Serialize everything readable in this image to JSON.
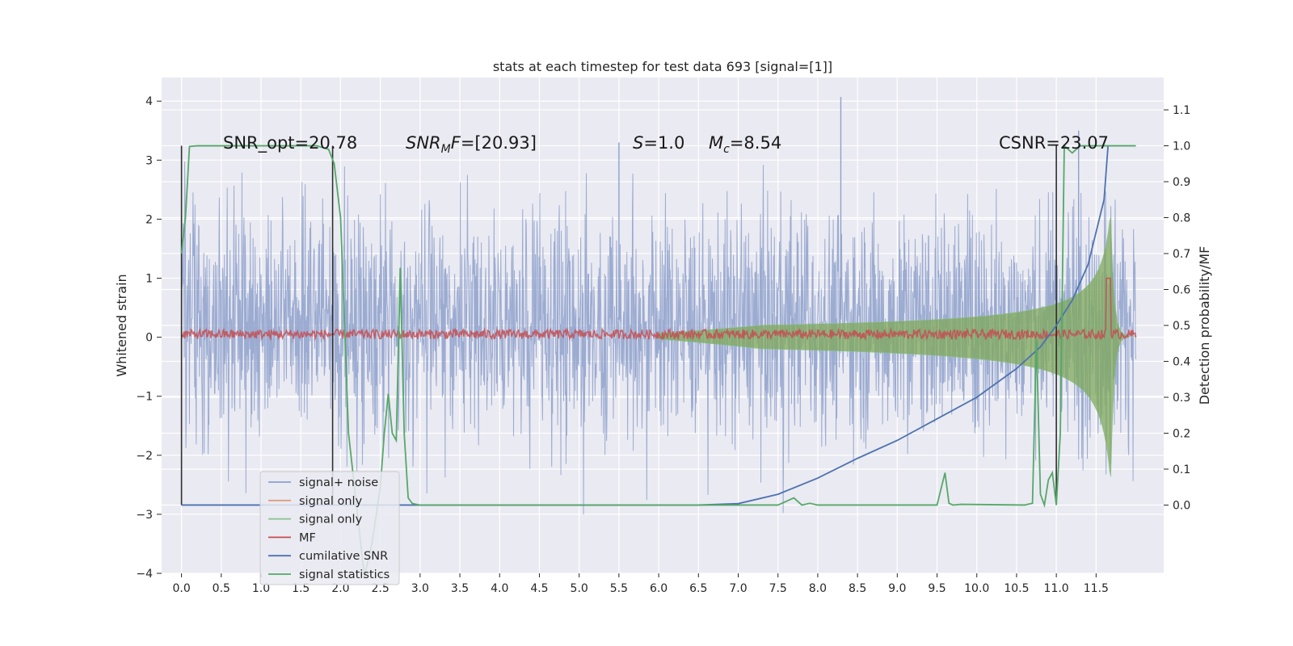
{
  "chart_data": {
    "type": "line",
    "title": "stats at each timestep for test data 693 [signal=[1]]",
    "ylabel_left": "Whitened strain",
    "ylabel_right": "Detection probability/MF",
    "xlim": [
      -0.25,
      12.35
    ],
    "ylim_left": [
      -4.0,
      4.4
    ],
    "ylim_right": [
      -0.19,
      1.19
    ],
    "x_ticks": [
      "0.0",
      "0.5",
      "1.0",
      "1.5",
      "2.0",
      "2.5",
      "3.0",
      "3.5",
      "4.0",
      "4.5",
      "5.0",
      "5.5",
      "6.0",
      "6.5",
      "7.0",
      "7.5",
      "8.0",
      "8.5",
      "9.0",
      "9.5",
      "10.0",
      "10.5",
      "11.0",
      "11.5"
    ],
    "y_ticks_left": [
      "4",
      "3",
      "2",
      "1",
      "0",
      "−1",
      "−2",
      "−3",
      "−4"
    ],
    "y_ticks_right": [
      "1.1",
      "1.0",
      "0.9",
      "0.8",
      "0.7",
      "0.6",
      "0.5",
      "0.4",
      "0.3",
      "0.2",
      "0.1",
      "0.0"
    ],
    "grid": true,
    "legend_position": "lower-left",
    "legend": [
      {
        "label": "signal+ noise",
        "color": "#8da0cb"
      },
      {
        "label": "signal only",
        "color": "#dd9f80"
      },
      {
        "label": "signal only",
        "color": "#88c28d"
      },
      {
        "label": "MF",
        "color": "#c44e52"
      },
      {
        "label": "cumilative SNR",
        "color": "#4c72b0"
      },
      {
        "label": "signal statistics",
        "color": "#55a868"
      }
    ],
    "annotations": {
      "snr_opt": "SNR_opt=20.78",
      "snr_mf_prefix": "SNR",
      "snr_mf_sub": "M",
      "snr_mf_suffix": "F=[20.93]",
      "s_label": "S",
      "s_value": "=1.0",
      "mc_label": "M",
      "mc_sub": "c",
      "mc_value": "=8.54",
      "csnr": "CSNR=23.07"
    },
    "series": [
      {
        "name": "signal+ noise",
        "axis": "left",
        "x_range": [
          0,
          12.0
        ],
        "envelope_typical": [
          -1.5,
          2.0
        ],
        "peaks_max": 4.07,
        "peaks_min": -3.65
      },
      {
        "name": "signal only",
        "axis": "left",
        "x_range": [
          0,
          12.0
        ],
        "description": "chirp amplitude rising to about ±2.7 at x≈11.65"
      },
      {
        "name": "MF",
        "axis": "left",
        "x_range": [
          0,
          12.0
        ],
        "level": 0.05
      },
      {
        "name": "cumilative SNR",
        "axis": "right",
        "x": [
          0.0,
          6.5,
          7.0,
          7.5,
          8.0,
          8.5,
          9.0,
          9.5,
          10.0,
          10.5,
          10.8,
          11.0,
          11.2,
          11.4,
          11.6,
          11.65
        ],
        "y": [
          0.0,
          0.0,
          0.004,
          0.03,
          0.075,
          0.13,
          0.18,
          0.24,
          0.3,
          0.38,
          0.44,
          0.5,
          0.57,
          0.67,
          0.85,
          1.0
        ]
      },
      {
        "name": "signal statistics",
        "axis": "right",
        "x": [
          0.0,
          0.05,
          0.1,
          0.2,
          1.7,
          1.85,
          1.92,
          2.0,
          2.1,
          2.3,
          2.4,
          2.5,
          2.55,
          2.6,
          2.65,
          2.7,
          2.75,
          2.8,
          2.85,
          2.9,
          2.95,
          3.0,
          7.5,
          7.7,
          7.8,
          7.9,
          8.0,
          9.5,
          9.6,
          9.65,
          9.7,
          9.8,
          10.6,
          10.7,
          10.75,
          10.8,
          10.85,
          10.9,
          10.95,
          11.0,
          11.05,
          11.1,
          11.15,
          11.2,
          11.3,
          11.5,
          11.7,
          12.0
        ],
        "y": [
          0.7,
          0.8,
          0.998,
          1.0,
          1.0,
          0.99,
          0.95,
          0.8,
          0.2,
          -0.2,
          -0.1,
          0.05,
          0.2,
          0.31,
          0.2,
          0.18,
          0.66,
          0.2,
          0.02,
          0.005,
          0.002,
          0.0,
          0.0,
          0.02,
          0.0,
          0.005,
          0.0,
          0.0,
          0.09,
          0.005,
          0.0,
          0.002,
          0.0,
          0.005,
          0.46,
          0.03,
          0.0,
          0.07,
          0.09,
          0.0,
          0.2,
          1.0,
          0.99,
          0.98,
          1.0,
          1.0,
          1.0,
          1.0
        ]
      }
    ]
  }
}
